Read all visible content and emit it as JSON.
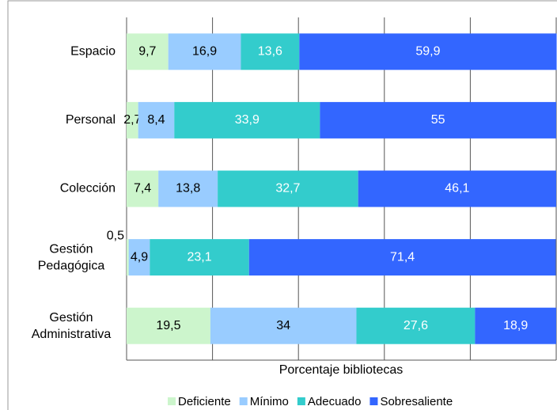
{
  "chart_data": {
    "type": "stacked_bar_horizontal",
    "categories": [
      "Espacio",
      "Personal",
      "Colección",
      "Gestión Pedagógica",
      "Gestión Administrativa"
    ],
    "series": [
      {
        "name": "Deficiente",
        "color": "#ccf5cc",
        "values": [
          9.7,
          2.7,
          7.4,
          0.5,
          19.5
        ],
        "value_labels": [
          "9,7",
          "2,7",
          "7,4",
          "0,5",
          "19,5"
        ]
      },
      {
        "name": "Mínimo",
        "color": "#99ccff",
        "values": [
          16.9,
          8.4,
          13.8,
          4.9,
          34
        ],
        "value_labels": [
          "16,9",
          "8,4",
          "13,8",
          "4,9",
          "34"
        ]
      },
      {
        "name": "Adecuado",
        "color": "#33cccc",
        "values": [
          13.6,
          33.9,
          32.7,
          23.1,
          27.6
        ],
        "value_labels": [
          "13,6",
          "33,9",
          "32,7",
          "23,1",
          "27,6"
        ]
      },
      {
        "name": "Sobresaliente",
        "color": "#3366ff",
        "values": [
          59.9,
          55,
          46.1,
          71.4,
          18.9
        ],
        "value_labels": [
          "59,9",
          "55",
          "46,1",
          "71,4",
          "18,9"
        ]
      }
    ],
    "xlabel": "Porcentaje bibliotecas",
    "xlim": [
      0,
      100
    ],
    "xticks": [
      0,
      20,
      40,
      60,
      80,
      100
    ],
    "grid": true,
    "legend": "bottom"
  }
}
